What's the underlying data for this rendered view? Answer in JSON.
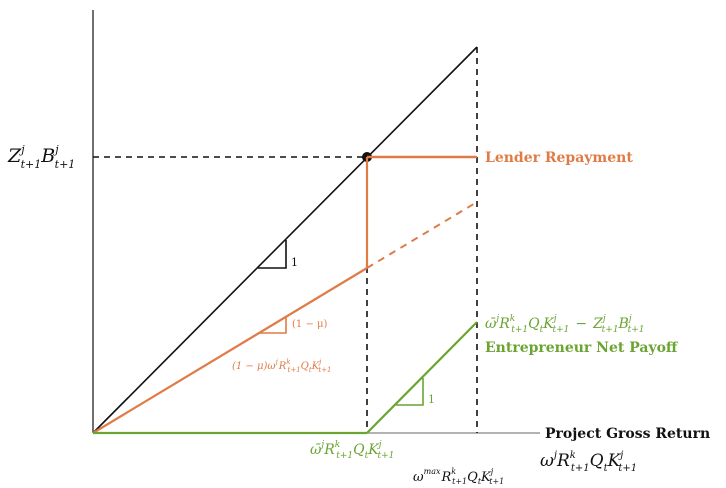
{
  "diagram": {
    "colors": {
      "black": "#111111",
      "orange": "#e07b46",
      "green": "#6aa431",
      "axis_gray": "#999999"
    },
    "labels": {
      "x_axis": "Project Gross Return",
      "lender_repayment": "Lender Repayment",
      "entrepreneur_payoff": "Entrepreneur Net Payoff",
      "slope_one_black": "1",
      "slope_one_green": "1",
      "slope_one_minus_mu": "(1 − μ)"
    },
    "math": {
      "y_tick": {
        "base1": "Z",
        "sup1": "j",
        "sub1": "t+1",
        "base2": "B",
        "sup2": "j",
        "sub2": "t+1"
      },
      "orange_curve": {
        "prefix": "(1 − μ)ω",
        "sup1": "j",
        "base2": "R",
        "sup2": "k",
        "sub2": "t+1",
        "base3": "Q",
        "sub3": "t",
        "base4": "K",
        "sup4": "j",
        "sub4": "t+1"
      },
      "green_payoff": {
        "base1": "ω̄",
        "sup1": "j",
        "base2": "R",
        "sup2": "k",
        "sub2": "t+1",
        "base3": "Q",
        "sub3": "t",
        "base4": "K",
        "sup4": "j",
        "sub4": "t+1",
        "minus": "−",
        "base5": "Z",
        "sup5": "j",
        "sub5": "t+1",
        "base6": "B",
        "sup6": "j",
        "sub6": "t+1"
      },
      "x_tick_threshold": {
        "base1": "ω̄",
        "sup1": "j",
        "base2": "R",
        "sup2": "k",
        "sub2": "t+1",
        "base3": "Q",
        "sub3": "t",
        "base4": "K",
        "sup4": "j",
        "sub4": "t+1"
      },
      "x_tick_max": {
        "base1": "ω",
        "sup1": "max",
        "base2": "R",
        "sup2": "k",
        "sub2": "t+1",
        "base3": "Q",
        "sub3": "t",
        "base4": "K",
        "sup4": "j",
        "sub4": "t+1"
      },
      "x_axis_var": {
        "base1": "ω",
        "sup1": "j",
        "base2": "R",
        "sup2": "k",
        "sub2": "t+1",
        "base3": "Q",
        "sub3": "t",
        "base4": "K",
        "sup4": "j",
        "sub4": "t+1"
      }
    }
  }
}
